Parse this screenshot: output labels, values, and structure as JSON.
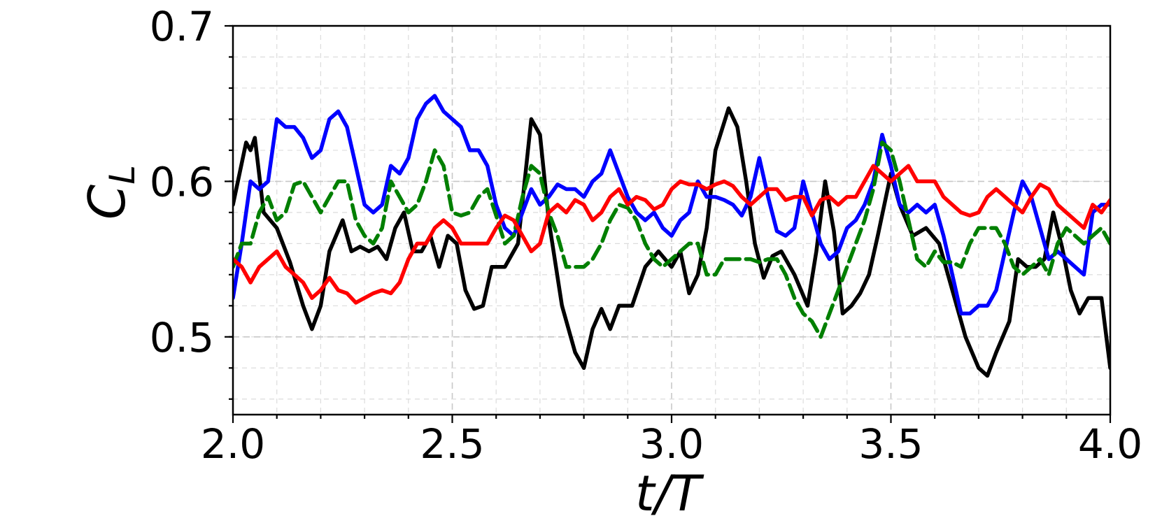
{
  "chart_data": {
    "type": "line",
    "title": "",
    "xlabel": "t/T",
    "ylabel": "C_L",
    "ylabel_main": "C",
    "ylabel_sub": "L",
    "xlim": [
      2.0,
      4.0
    ],
    "ylim": [
      0.45,
      0.7
    ],
    "xticks": [
      2.0,
      2.5,
      3.0,
      3.5,
      4.0
    ],
    "xtick_labels": [
      "2.0",
      "2.5",
      "3.0",
      "3.5",
      "4.0"
    ],
    "yticks": [
      0.5,
      0.6,
      0.7
    ],
    "ytick_labels": [
      "0.5",
      "0.6",
      "0.7"
    ],
    "x_minor_step": 0.1,
    "y_minor_step": 0.02,
    "grid": true,
    "legend": "none",
    "series": [
      {
        "color": "#000000",
        "dash": "solid",
        "x": [
          2.0,
          2.03,
          2.04,
          2.05,
          2.07,
          2.1,
          2.13,
          2.16,
          2.18,
          2.2,
          2.22,
          2.25,
          2.27,
          2.29,
          2.31,
          2.33,
          2.35,
          2.37,
          2.39,
          2.41,
          2.43,
          2.45,
          2.47,
          2.49,
          2.51,
          2.53,
          2.55,
          2.57,
          2.59,
          2.62,
          2.65,
          2.68,
          2.7,
          2.72,
          2.75,
          2.78,
          2.8,
          2.82,
          2.84,
          2.86,
          2.88,
          2.91,
          2.94,
          2.97,
          3.0,
          3.02,
          3.04,
          3.06,
          3.08,
          3.1,
          3.13,
          3.15,
          3.17,
          3.19,
          3.21,
          3.23,
          3.25,
          3.28,
          3.31,
          3.33,
          3.35,
          3.37,
          3.39,
          3.41,
          3.43,
          3.45,
          3.47,
          3.5,
          3.52,
          3.55,
          3.58,
          3.61,
          3.64,
          3.67,
          3.7,
          3.72,
          3.74,
          3.77,
          3.79,
          3.81,
          3.83,
          3.85,
          3.87,
          3.89,
          3.91,
          3.93,
          3.95,
          3.98,
          4.0
        ],
        "y": [
          0.585,
          0.625,
          0.62,
          0.628,
          0.58,
          0.57,
          0.548,
          0.52,
          0.505,
          0.52,
          0.555,
          0.575,
          0.555,
          0.558,
          0.555,
          0.558,
          0.55,
          0.57,
          0.58,
          0.555,
          0.555,
          0.565,
          0.545,
          0.565,
          0.56,
          0.53,
          0.518,
          0.52,
          0.545,
          0.545,
          0.56,
          0.64,
          0.63,
          0.575,
          0.52,
          0.49,
          0.48,
          0.505,
          0.518,
          0.505,
          0.52,
          0.52,
          0.545,
          0.555,
          0.545,
          0.555,
          0.528,
          0.54,
          0.57,
          0.62,
          0.647,
          0.635,
          0.6,
          0.56,
          0.538,
          0.552,
          0.555,
          0.54,
          0.52,
          0.555,
          0.6,
          0.568,
          0.515,
          0.52,
          0.528,
          0.54,
          0.565,
          0.605,
          0.585,
          0.565,
          0.57,
          0.56,
          0.53,
          0.5,
          0.48,
          0.475,
          0.49,
          0.51,
          0.55,
          0.545,
          0.545,
          0.55,
          0.58,
          0.558,
          0.53,
          0.515,
          0.525,
          0.525,
          0.48
        ]
      },
      {
        "color": "#0000ff",
        "dash": "solid",
        "x": [
          2.0,
          2.02,
          2.04,
          2.06,
          2.08,
          2.1,
          2.12,
          2.14,
          2.16,
          2.18,
          2.2,
          2.22,
          2.24,
          2.26,
          2.28,
          2.3,
          2.32,
          2.34,
          2.36,
          2.38,
          2.4,
          2.42,
          2.44,
          2.46,
          2.48,
          2.5,
          2.52,
          2.54,
          2.56,
          2.58,
          2.6,
          2.62,
          2.64,
          2.66,
          2.68,
          2.7,
          2.72,
          2.74,
          2.76,
          2.78,
          2.8,
          2.82,
          2.84,
          2.86,
          2.88,
          2.9,
          2.92,
          2.94,
          2.96,
          2.98,
          3.0,
          3.02,
          3.04,
          3.06,
          3.08,
          3.1,
          3.12,
          3.14,
          3.16,
          3.18,
          3.2,
          3.22,
          3.24,
          3.26,
          3.28,
          3.3,
          3.32,
          3.34,
          3.36,
          3.38,
          3.4,
          3.42,
          3.44,
          3.46,
          3.48,
          3.5,
          3.52,
          3.54,
          3.56,
          3.58,
          3.6,
          3.62,
          3.64,
          3.66,
          3.68,
          3.7,
          3.72,
          3.74,
          3.76,
          3.78,
          3.8,
          3.82,
          3.84,
          3.86,
          3.88,
          3.9,
          3.92,
          3.94,
          3.96,
          3.98,
          4.0
        ],
        "y": [
          0.525,
          0.56,
          0.6,
          0.595,
          0.6,
          0.64,
          0.635,
          0.635,
          0.628,
          0.615,
          0.62,
          0.64,
          0.645,
          0.635,
          0.61,
          0.585,
          0.58,
          0.585,
          0.61,
          0.605,
          0.615,
          0.64,
          0.65,
          0.655,
          0.645,
          0.64,
          0.635,
          0.62,
          0.62,
          0.61,
          0.585,
          0.57,
          0.565,
          0.58,
          0.595,
          0.585,
          0.59,
          0.598,
          0.595,
          0.595,
          0.59,
          0.6,
          0.605,
          0.62,
          0.605,
          0.59,
          0.58,
          0.575,
          0.58,
          0.57,
          0.565,
          0.575,
          0.58,
          0.6,
          0.59,
          0.59,
          0.588,
          0.585,
          0.578,
          0.59,
          0.615,
          0.59,
          0.568,
          0.565,
          0.57,
          0.6,
          0.58,
          0.56,
          0.55,
          0.555,
          0.57,
          0.575,
          0.585,
          0.6,
          0.63,
          0.61,
          0.585,
          0.58,
          0.585,
          0.58,
          0.585,
          0.565,
          0.54,
          0.515,
          0.515,
          0.52,
          0.52,
          0.53,
          0.555,
          0.58,
          0.6,
          0.59,
          0.57,
          0.55,
          0.555,
          0.55,
          0.545,
          0.54,
          0.58,
          0.585,
          0.585
        ]
      },
      {
        "color": "#007f00",
        "dash": "dashed",
        "x": [
          2.0,
          2.02,
          2.04,
          2.06,
          2.08,
          2.1,
          2.12,
          2.14,
          2.16,
          2.18,
          2.2,
          2.22,
          2.24,
          2.26,
          2.28,
          2.3,
          2.32,
          2.34,
          2.36,
          2.38,
          2.4,
          2.42,
          2.44,
          2.46,
          2.48,
          2.5,
          2.52,
          2.54,
          2.56,
          2.58,
          2.6,
          2.62,
          2.64,
          2.66,
          2.68,
          2.7,
          2.72,
          2.74,
          2.76,
          2.78,
          2.8,
          2.82,
          2.84,
          2.86,
          2.88,
          2.9,
          2.92,
          2.94,
          2.96,
          2.98,
          3.0,
          3.02,
          3.04,
          3.06,
          3.08,
          3.1,
          3.12,
          3.14,
          3.16,
          3.18,
          3.2,
          3.22,
          3.24,
          3.26,
          3.28,
          3.3,
          3.32,
          3.34,
          3.36,
          3.38,
          3.4,
          3.42,
          3.44,
          3.46,
          3.48,
          3.5,
          3.52,
          3.54,
          3.56,
          3.58,
          3.6,
          3.62,
          3.64,
          3.66,
          3.68,
          3.7,
          3.72,
          3.74,
          3.76,
          3.78,
          3.8,
          3.82,
          3.84,
          3.86,
          3.88,
          3.9,
          3.92,
          3.94,
          3.96,
          3.98,
          4.0
        ],
        "y": [
          0.545,
          0.56,
          0.56,
          0.58,
          0.59,
          0.575,
          0.58,
          0.598,
          0.6,
          0.59,
          0.58,
          0.59,
          0.6,
          0.6,
          0.575,
          0.565,
          0.56,
          0.57,
          0.6,
          0.59,
          0.58,
          0.585,
          0.6,
          0.62,
          0.61,
          0.58,
          0.578,
          0.58,
          0.59,
          0.595,
          0.578,
          0.56,
          0.565,
          0.59,
          0.61,
          0.605,
          0.58,
          0.565,
          0.545,
          0.545,
          0.545,
          0.55,
          0.56,
          0.575,
          0.585,
          0.583,
          0.575,
          0.56,
          0.55,
          0.545,
          0.55,
          0.555,
          0.56,
          0.56,
          0.54,
          0.54,
          0.55,
          0.55,
          0.55,
          0.55,
          0.548,
          0.55,
          0.55,
          0.54,
          0.525,
          0.515,
          0.51,
          0.5,
          0.515,
          0.53,
          0.545,
          0.56,
          0.575,
          0.595,
          0.625,
          0.62,
          0.6,
          0.575,
          0.55,
          0.545,
          0.555,
          0.548,
          0.548,
          0.545,
          0.56,
          0.57,
          0.57,
          0.57,
          0.56,
          0.545,
          0.54,
          0.545,
          0.55,
          0.54,
          0.56,
          0.57,
          0.565,
          0.56,
          0.565,
          0.57,
          0.56
        ]
      },
      {
        "color": "#ff0000",
        "dash": "solid",
        "x": [
          2.0,
          2.02,
          2.04,
          2.06,
          2.08,
          2.1,
          2.12,
          2.14,
          2.16,
          2.18,
          2.2,
          2.22,
          2.24,
          2.26,
          2.28,
          2.3,
          2.32,
          2.34,
          2.36,
          2.38,
          2.4,
          2.42,
          2.44,
          2.46,
          2.48,
          2.5,
          2.52,
          2.54,
          2.56,
          2.58,
          2.6,
          2.62,
          2.64,
          2.66,
          2.68,
          2.7,
          2.72,
          2.74,
          2.76,
          2.78,
          2.8,
          2.82,
          2.84,
          2.86,
          2.88,
          2.9,
          2.92,
          2.94,
          2.96,
          2.98,
          3.0,
          3.02,
          3.04,
          3.06,
          3.08,
          3.1,
          3.12,
          3.14,
          3.16,
          3.18,
          3.2,
          3.22,
          3.24,
          3.26,
          3.28,
          3.3,
          3.32,
          3.34,
          3.36,
          3.38,
          3.4,
          3.42,
          3.44,
          3.46,
          3.48,
          3.5,
          3.52,
          3.54,
          3.56,
          3.58,
          3.6,
          3.62,
          3.64,
          3.66,
          3.68,
          3.7,
          3.72,
          3.74,
          3.76,
          3.78,
          3.8,
          3.82,
          3.84,
          3.86,
          3.88,
          3.9,
          3.92,
          3.94,
          3.96,
          3.98,
          4.0
        ],
        "y": [
          0.55,
          0.545,
          0.535,
          0.545,
          0.55,
          0.555,
          0.545,
          0.54,
          0.535,
          0.525,
          0.53,
          0.538,
          0.53,
          0.528,
          0.522,
          0.525,
          0.528,
          0.53,
          0.528,
          0.535,
          0.55,
          0.56,
          0.56,
          0.57,
          0.575,
          0.57,
          0.56,
          0.56,
          0.56,
          0.56,
          0.57,
          0.578,
          0.575,
          0.565,
          0.555,
          0.56,
          0.58,
          0.585,
          0.58,
          0.588,
          0.585,
          0.575,
          0.58,
          0.59,
          0.595,
          0.585,
          0.59,
          0.588,
          0.582,
          0.585,
          0.595,
          0.6,
          0.598,
          0.598,
          0.595,
          0.598,
          0.6,
          0.597,
          0.59,
          0.585,
          0.59,
          0.595,
          0.595,
          0.588,
          0.59,
          0.59,
          0.578,
          0.588,
          0.59,
          0.585,
          0.59,
          0.59,
          0.6,
          0.61,
          0.605,
          0.6,
          0.605,
          0.61,
          0.6,
          0.6,
          0.6,
          0.59,
          0.585,
          0.58,
          0.578,
          0.58,
          0.59,
          0.595,
          0.59,
          0.585,
          0.58,
          0.59,
          0.598,
          0.595,
          0.585,
          0.58,
          0.575,
          0.57,
          0.585,
          0.58,
          0.588
        ]
      }
    ]
  }
}
